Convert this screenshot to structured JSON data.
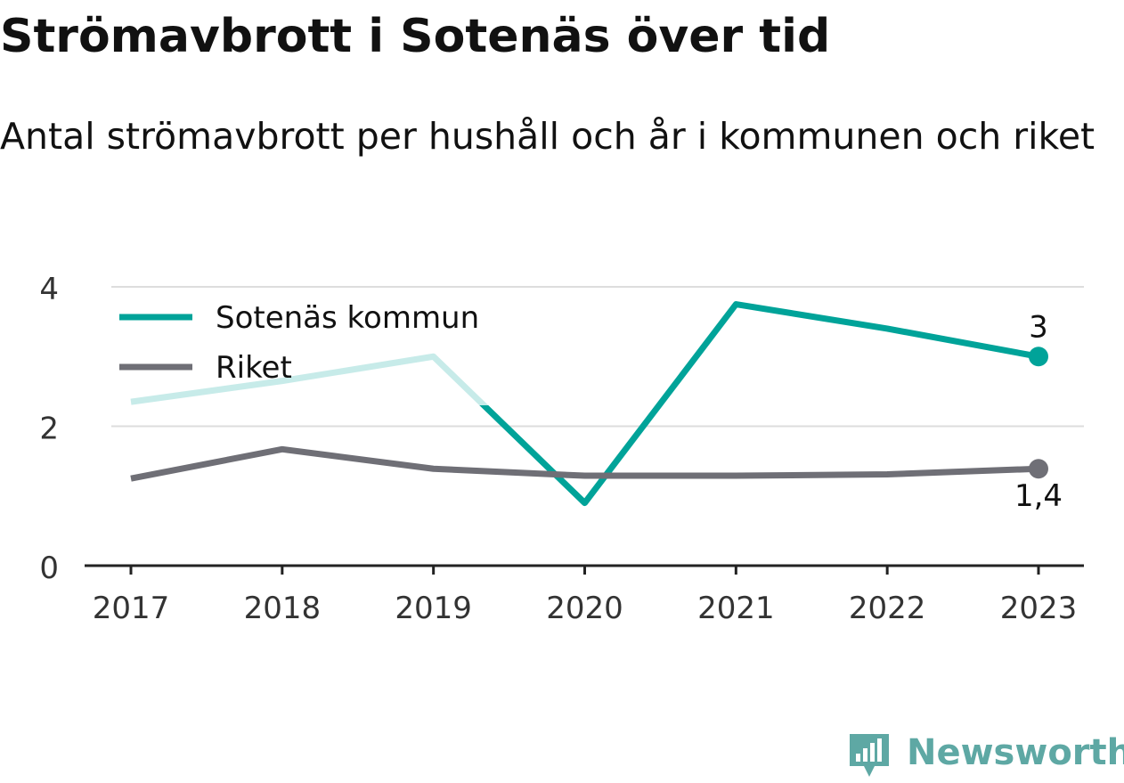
{
  "header": {
    "title": "Strömavbrott i Sotenäs över tid",
    "subtitle": "Antal strömavbrott per hushåll och år i kommunen och riket"
  },
  "brand": {
    "name": "Newsworthy",
    "icon": "newsworthy-logo-icon",
    "color": "#5ea8a4"
  },
  "colors": {
    "sotenas": "#00a399",
    "riket": "#6f6f76",
    "grid": "#dddddd",
    "axis": "#222222"
  },
  "chart_data": {
    "type": "line",
    "categories": [
      "2017",
      "2018",
      "2019",
      "2020",
      "2021",
      "2022",
      "2023"
    ],
    "series": [
      {
        "name": "Sotenäs kommun",
        "values": [
          2.35,
          2.65,
          3.0,
          0.9,
          3.75,
          3.4,
          3.0
        ],
        "end_label": "3"
      },
      {
        "name": "Riket",
        "values": [
          1.25,
          1.67,
          1.39,
          1.29,
          1.29,
          1.31,
          1.39
        ],
        "end_label": "1,4"
      }
    ],
    "yticks": [
      "0",
      "2",
      "4"
    ],
    "ylim": [
      0,
      4
    ],
    "grid": true,
    "legend_position": "top-left"
  }
}
